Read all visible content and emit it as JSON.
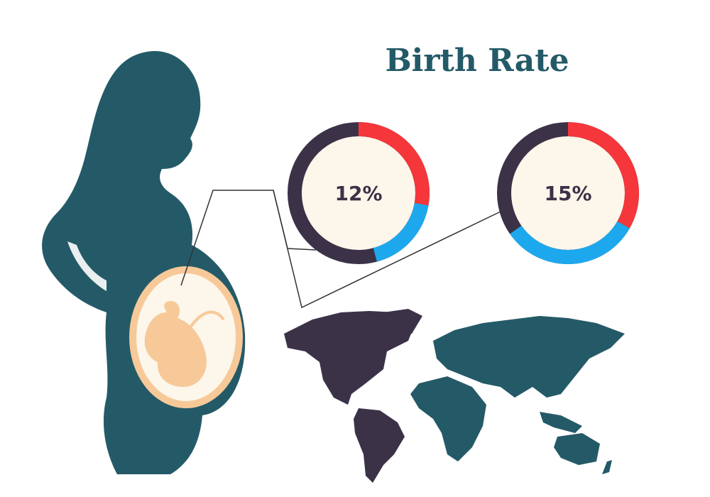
{
  "title": "Birth Rate",
  "stats": [
    {
      "label": "12%"
    },
    {
      "label": "15%"
    }
  ]
}
